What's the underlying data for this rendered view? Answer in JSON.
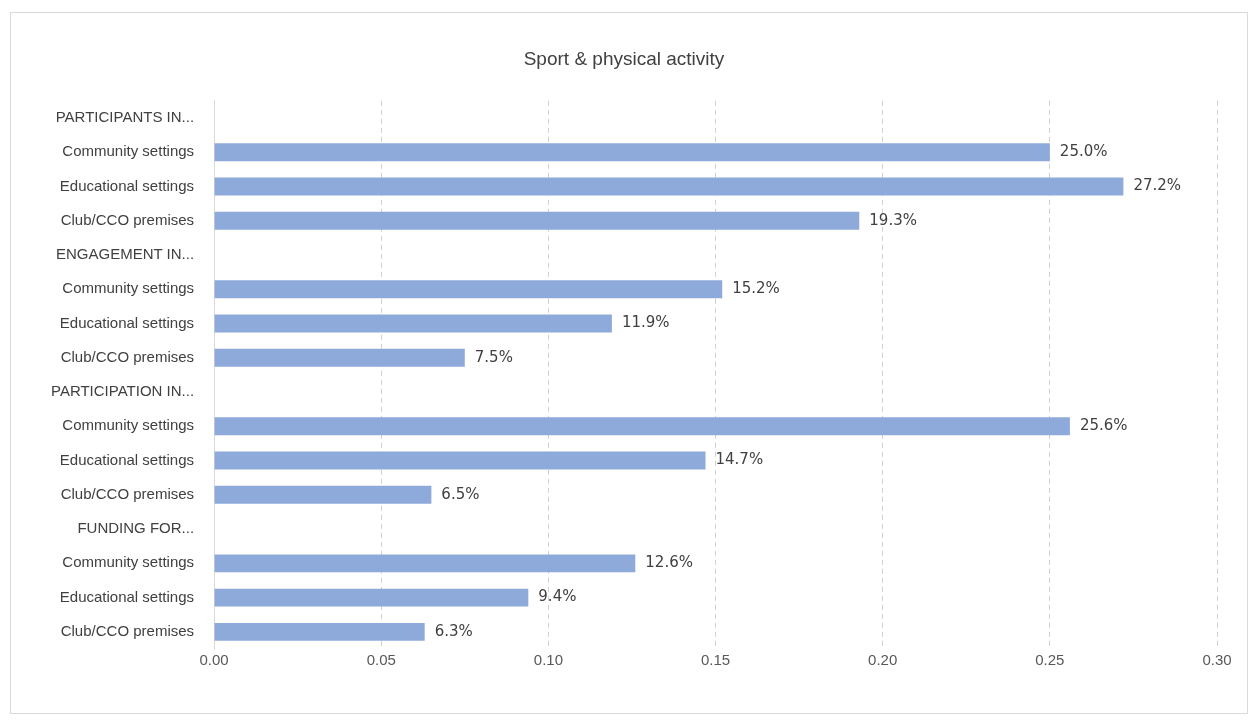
{
  "chart_data": {
    "type": "bar",
    "orientation": "horizontal",
    "title": "Sport & physical activity",
    "categories": [
      "PARTICIPANTS IN...",
      "Community settings",
      "Educational settings",
      "Club/CCO premises",
      "ENGAGEMENT IN...",
      "Community settings",
      "Educational settings",
      "Club/CCO premises",
      "PARTICIPATION IN...",
      "Community settings",
      "Educational settings",
      "Club/CCO premises",
      "FUNDING FOR...",
      "Community settings",
      "Educational settings",
      "Club/CCO premises"
    ],
    "values": [
      null,
      0.25,
      0.272,
      0.193,
      null,
      0.152,
      0.119,
      0.075,
      null,
      0.256,
      0.147,
      0.065,
      null,
      0.126,
      0.094,
      0.063
    ],
    "value_labels": [
      null,
      "25.0%",
      "27.2%",
      "19.3%",
      null,
      "15.2%",
      "11.9%",
      "7.5%",
      null,
      "25.6%",
      "14.7%",
      "6.5%",
      null,
      "12.6%",
      "9.4%",
      "6.3%"
    ],
    "color": "#8eaadb",
    "xlim": [
      0,
      0.3
    ],
    "xticks": [
      {
        "value": 0,
        "label": "0.00"
      },
      {
        "value": 0.05,
        "label": "0.05"
      },
      {
        "value": 0.1,
        "label": "0.10"
      },
      {
        "value": 0.15,
        "label": "0.15"
      },
      {
        "value": 0.2,
        "label": "0.20"
      },
      {
        "value": 0.25,
        "label": "0.25"
      },
      {
        "value": 0.3,
        "label": "0.30"
      }
    ],
    "grid": "x",
    "legend": false
  }
}
